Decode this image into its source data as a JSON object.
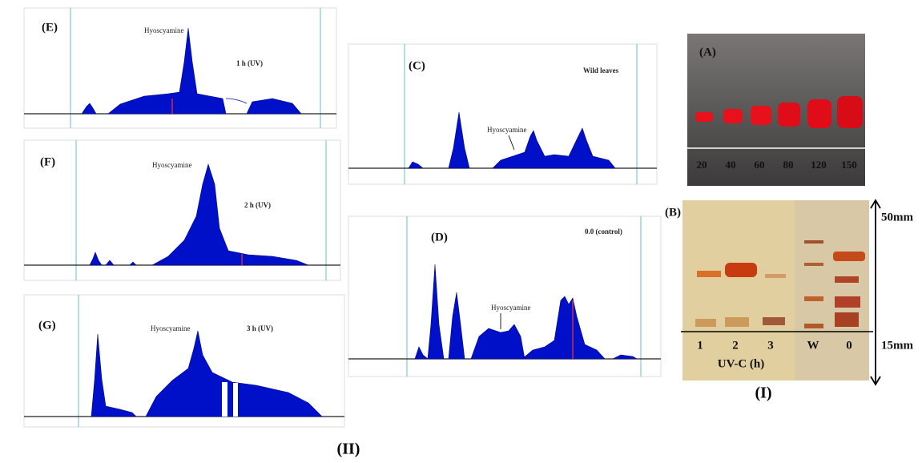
{
  "panels": {
    "E": {
      "label": "(E)",
      "peak_label": "Hyoscyamine",
      "condition": "1 h (UV)"
    },
    "F": {
      "label": "(F)",
      "peak_label": "Hyoscyamine",
      "condition": "2 h (UV)"
    },
    "G": {
      "label": "(G)",
      "peak_label": "Hyoscyamine",
      "condition": "3 h (UV)"
    },
    "C": {
      "label": "(C)",
      "peak_label": "Hyoscyamine",
      "condition": "Wild leaves"
    },
    "D": {
      "label": "(D)",
      "peak_label": "Hyoscyamine",
      "condition": "0.0 (control)"
    }
  },
  "tlc_a": {
    "label": "(A)",
    "lanes": [
      20,
      40,
      60,
      80,
      120,
      150
    ]
  },
  "tlc_b": {
    "label": "(B)",
    "lanes": [
      "1",
      "2",
      "3",
      "W",
      "0"
    ],
    "axis_label": "UV-C (h)",
    "top_mark": "50mm",
    "bottom_mark": "15mm"
  },
  "figure_labels": {
    "part_i": "(I)",
    "part_ii": "(II)"
  }
}
